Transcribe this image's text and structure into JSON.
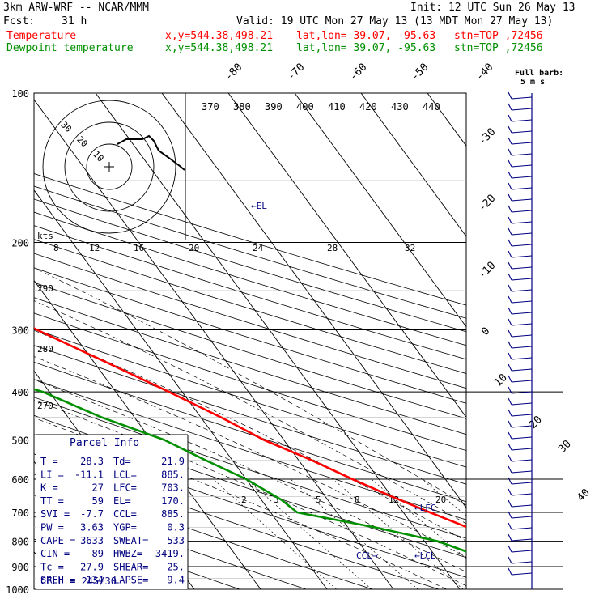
{
  "header": {
    "model": "3km ARW-WRF -- NCAR/MMM",
    "init": "Init: 12 UTC Sun 26 May 13",
    "fcst_label": "Fcst:",
    "fcst_value": "31 h",
    "valid": "Valid: 19 UTC Mon 27 May 13 (13 MDT Mon 27 May 13)",
    "temp_label": "Temperature",
    "dew_label": "Dewpoint temperature",
    "xy": "x,y=544.38,498.21",
    "latlon": "lat,lon= 39.07, -95.63",
    "stn": "stn=TOP ,72456"
  },
  "colors": {
    "temperature": "#ff0000",
    "dewpoint": "#009000",
    "info": "#000080",
    "skew": "#000000"
  },
  "chart_data": {
    "type": "line",
    "title": "",
    "ylabel": "",
    "pressure_levels": [
      100,
      200,
      300,
      400,
      500,
      600,
      700,
      800,
      900,
      1000
    ],
    "skewed_temp_labels": [
      "-80",
      "-70",
      "-60",
      "-50",
      "-40",
      "-30",
      "-20",
      "-10",
      "0",
      "10",
      "20",
      "30",
      "40"
    ],
    "theta_labels": [
      "370",
      "380",
      "390",
      "400",
      "410",
      "420",
      "430",
      "440"
    ],
    "mixing_ratio_labels": [
      "2",
      "3",
      "5",
      "8",
      "12",
      "20"
    ],
    "wind_speed_labels": [
      "8",
      "12",
      "16",
      "20",
      "24",
      "28",
      "32"
    ],
    "wind_speed_unit": "kts",
    "dry_adiabat_labels": [
      "290",
      "280",
      "270"
    ],
    "barb_legend": "Full barb:",
    "barb_legend_units": "5 m s",
    "annotations": {
      "el": "EL",
      "lfc": "LFC",
      "lcl": "LCL",
      "ccl": "CCL"
    },
    "hodograph_rings": [
      "30",
      "20",
      "10"
    ],
    "series": [
      {
        "name": "Temperature",
        "points": [
          [
            1000,
            29
          ],
          [
            950,
            25
          ],
          [
            925,
            23
          ],
          [
            900,
            21.5
          ],
          [
            850,
            20
          ],
          [
            800,
            19.5
          ],
          [
            750,
            18
          ],
          [
            700,
            14
          ],
          [
            650,
            10
          ],
          [
            600,
            6
          ],
          [
            550,
            2
          ],
          [
            500,
            -3
          ],
          [
            450,
            -7
          ],
          [
            400,
            -12
          ],
          [
            350,
            -18
          ],
          [
            300,
            -25
          ],
          [
            250,
            -32
          ],
          [
            200,
            -43
          ],
          [
            180,
            -52
          ],
          [
            165,
            -58
          ],
          [
            150,
            -60
          ],
          [
            130,
            -60
          ],
          [
            110,
            -57
          ],
          [
            100,
            -54
          ]
        ]
      },
      {
        "name": "Dewpoint temperature",
        "points": [
          [
            1000,
            21.5
          ],
          [
            950,
            21
          ],
          [
            925,
            20.5
          ],
          [
            900,
            19
          ],
          [
            850,
            16
          ],
          [
            800,
            12
          ],
          [
            750,
            4
          ],
          [
            700,
            -6
          ],
          [
            660,
            -7
          ],
          [
            600,
            -10
          ],
          [
            550,
            -14
          ],
          [
            500,
            -18
          ],
          [
            450,
            -25
          ],
          [
            400,
            -31
          ],
          [
            360,
            -40
          ],
          [
            320,
            -48
          ],
          [
            300,
            -48
          ],
          [
            260,
            -48
          ],
          [
            230,
            -54
          ],
          [
            200,
            -58
          ],
          [
            180,
            -62
          ],
          [
            160,
            -66
          ],
          [
            140,
            -69
          ],
          [
            120,
            -72
          ],
          [
            100,
            -78
          ]
        ]
      }
    ]
  },
  "parcel_info": {
    "title": "Parcel Info",
    "rows": [
      {
        "l1": "T",
        "v1": "28.3",
        "l2": "Td",
        "v2": "21.9"
      },
      {
        "l1": "LI",
        "v1": "-11.1",
        "l2": "LCL",
        "v2": "885."
      },
      {
        "l1": "K",
        "v1": "27",
        "l2": "LFC",
        "v2": "703."
      },
      {
        "l1": "TT",
        "v1": "59",
        "l2": "EL",
        "v2": "170."
      },
      {
        "l1": "SVI",
        "v1": "-7.7",
        "l2": "CCL",
        "v2": "885."
      },
      {
        "l1": "PW",
        "v1": "3.63",
        "l2": "YGP",
        "v2": "0.3"
      },
      {
        "l1": "CAPE",
        "v1": "3633",
        "l2": "SWEAT",
        "v2": "533"
      },
      {
        "l1": "CIN",
        "v1": "-89",
        "l2": "HWBZ",
        "v2": "3419."
      },
      {
        "l1": "Tc",
        "v1": "27.9",
        "l2": "SHEAR",
        "v2": "25."
      },
      {
        "l1": "SREH",
        "v1": "134",
        "l2": "LAPSE",
        "v2": "9.4"
      }
    ],
    "cell": "CELL = 245/30"
  }
}
